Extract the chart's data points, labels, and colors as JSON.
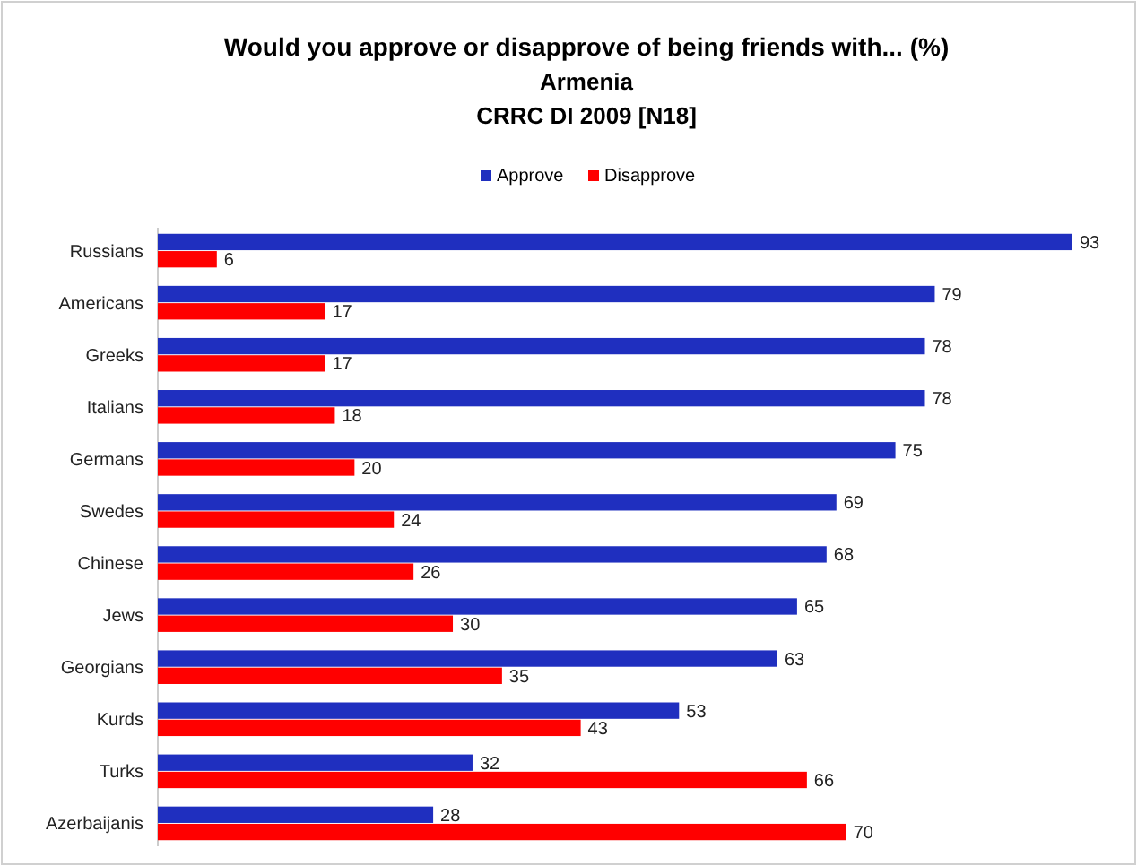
{
  "chart_data": {
    "type": "bar",
    "orientation": "horizontal",
    "title": "Would you approve or disapprove of being friends with... (%)",
    "subtitle": "Armenia\nCRRC DI 2009 [N18]",
    "categories": [
      "Russians",
      "Americans",
      "Greeks",
      "Italians",
      "Germans",
      "Swedes",
      "Chinese",
      "Jews",
      "Georgians",
      "Kurds",
      "Turks",
      "Azerbaijanis"
    ],
    "series": [
      {
        "name": "Approve",
        "color": "#1f2fbf",
        "values": [
          93,
          79,
          78,
          78,
          75,
          69,
          68,
          65,
          63,
          53,
          32,
          28
        ]
      },
      {
        "name": "Disapprove",
        "color": "#ff0000",
        "values": [
          6,
          17,
          17,
          18,
          20,
          24,
          26,
          30,
          35,
          43,
          66,
          70
        ]
      }
    ],
    "data_labels": true,
    "legend": "top",
    "tick_labels": "y",
    "grid": false
  }
}
